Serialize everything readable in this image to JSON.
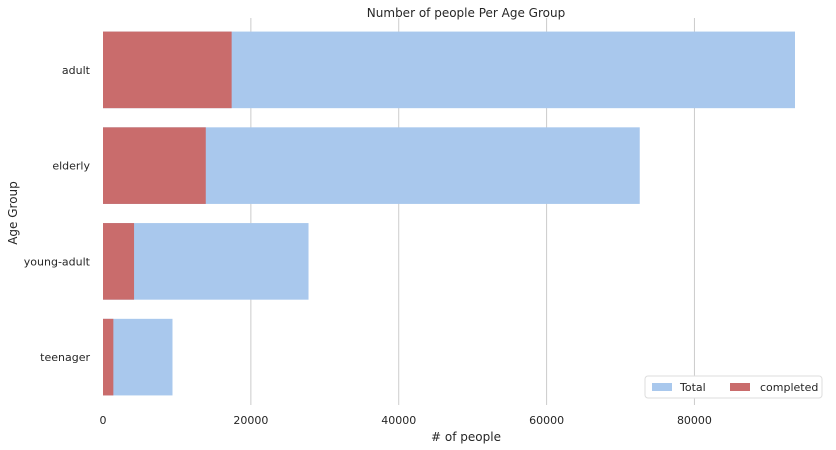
{
  "chart_data": {
    "type": "bar",
    "orientation": "horizontal",
    "title": "Number of people Per Age Group",
    "xlabel": "# of people",
    "ylabel": "Age Group",
    "categories": [
      "adult",
      "elderly",
      "young-adult",
      "teenager"
    ],
    "series": [
      {
        "name": "Total",
        "values": [
          93600,
          72600,
          27800,
          9400
        ],
        "color": "#a9c8ed"
      },
      {
        "name": "completed",
        "values": [
          17400,
          13900,
          4200,
          1400
        ],
        "color": "#c96c6c"
      }
    ],
    "xlim": [
      0,
      93600
    ],
    "xticks": [
      0,
      20000,
      40000,
      60000,
      80000
    ],
    "xtick_labels": [
      "0",
      "20000",
      "40000",
      "60000",
      "80000"
    ],
    "grid": "vertical",
    "legend": "bottom-right"
  }
}
